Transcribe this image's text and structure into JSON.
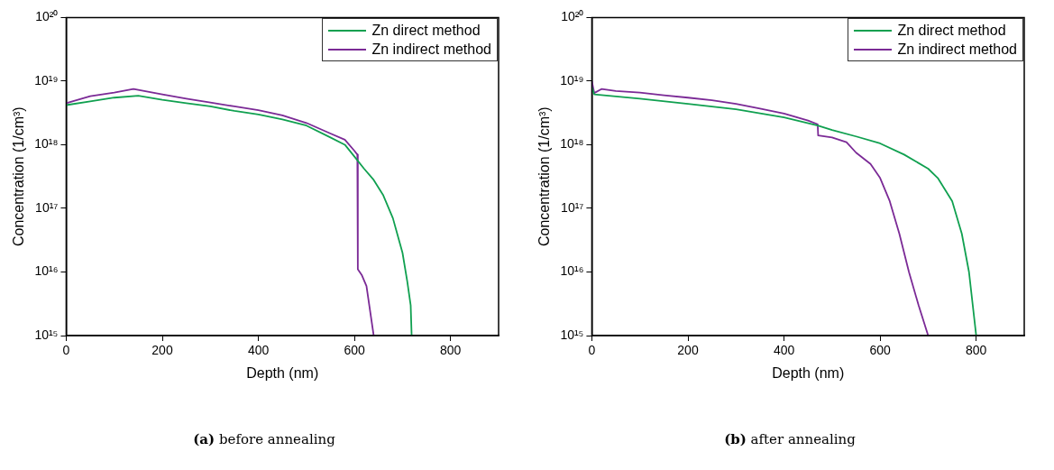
{
  "chart_data": [
    {
      "type": "line",
      "xlabel": "Depth (nm)",
      "ylabel": "Concentration (1/cm³)",
      "log": "y",
      "grid": false,
      "legend": "top right",
      "marker": "none",
      "line_style": "solid",
      "xlim": [
        0,
        900
      ],
      "xticks": [
        0,
        200,
        400,
        600,
        800
      ],
      "ylim": [
        1000000000000000.0,
        1e+20
      ],
      "yticks": [
        {
          "value": 1000000000000000.0,
          "label": "10¹⁵"
        },
        {
          "value": 1e+16,
          "label": "10¹⁶"
        },
        {
          "value": 1e+17,
          "label": "10¹⁷"
        },
        {
          "value": 1e+18,
          "label": "10¹⁸"
        },
        {
          "value": 1e+19,
          "label": "10¹⁹"
        },
        {
          "value": 1e+20,
          "label": "10²⁰"
        }
      ],
      "annotations": [
        "(a) before annealing"
      ],
      "series": [
        {
          "name": "Zn direct method",
          "color": "#10a050",
          "x": [
            0,
            50,
            100,
            150,
            200,
            250,
            300,
            350,
            400,
            450,
            500,
            550,
            580,
            600,
            620,
            640,
            660,
            680,
            700,
            710,
            717,
            719
          ],
          "values": [
            4.2e+18,
            4.8e+18,
            5.5e+18,
            5.9e+18,
            5.1e+18,
            4.5e+18,
            4e+18,
            3.4e+18,
            3e+18,
            2.5e+18,
            2e+18,
            1.3e+18,
            1e+18,
            6.5e+17,
            4.2e+17,
            2.8e+17,
            1.6e+17,
            7e+16,
            2e+16,
            7000000000000000.0,
            3000000000000000.0,
            1000000000000000.0
          ]
        },
        {
          "name": "Zn indirect method",
          "color": "#7b2a96",
          "x": [
            0,
            50,
            100,
            140,
            200,
            250,
            300,
            350,
            400,
            450,
            500,
            550,
            580,
            600,
            606,
            607,
            615,
            625,
            640
          ],
          "values": [
            4.5e+18,
            5.8e+18,
            6.6e+18,
            7.5e+18,
            6.2e+18,
            5.3e+18,
            4.6e+18,
            4e+18,
            3.5e+18,
            2.9e+18,
            2.2e+18,
            1.5e+18,
            1.2e+18,
            8e+17,
            7e+17,
            1.1e+16,
            9000000000000000.0,
            6000000000000000.0,
            1000000000000000.0
          ]
        }
      ]
    },
    {
      "type": "line",
      "xlabel": "Depth (nm)",
      "ylabel": "Concentration (1/cm³)",
      "log": "y",
      "grid": false,
      "legend": "top right",
      "marker": "none",
      "line_style": "solid",
      "xlim": [
        0,
        900
      ],
      "xticks": [
        0,
        200,
        400,
        600,
        800
      ],
      "ylim": [
        1000000000000000.0,
        1e+20
      ],
      "yticks": [
        {
          "value": 1000000000000000.0,
          "label": "10¹⁵"
        },
        {
          "value": 1e+16,
          "label": "10¹⁶"
        },
        {
          "value": 1e+17,
          "label": "10¹⁷"
        },
        {
          "value": 1e+18,
          "label": "10¹⁸"
        },
        {
          "value": 1e+19,
          "label": "10¹⁹"
        },
        {
          "value": 1e+20,
          "label": "10²⁰"
        }
      ],
      "annotations": [
        "(b) after annealing"
      ],
      "series": [
        {
          "name": "Zn direct method",
          "color": "#10a050",
          "x": [
            0,
            5,
            100,
            200,
            300,
            400,
            470,
            500,
            550,
            600,
            650,
            700,
            720,
            750,
            770,
            785,
            800
          ],
          "values": [
            8e+18,
            6.2e+18,
            5.3e+18,
            4.4e+18,
            3.6e+18,
            2.7e+18,
            2e+18,
            1.7e+18,
            1.35e+18,
            1.05e+18,
            7e+17,
            4.2e+17,
            3e+17,
            1.3e+17,
            4e+16,
            1e+16,
            1000000000000000.0
          ]
        },
        {
          "name": "Zn indirect method",
          "color": "#7b2a96",
          "x": [
            0,
            5,
            20,
            50,
            100,
            150,
            200,
            250,
            300,
            350,
            400,
            450,
            470,
            471,
            500,
            530,
            550,
            580,
            600,
            620,
            640,
            660,
            680,
            700
          ],
          "values": [
            1e+19,
            6.5e+18,
            7.5e+18,
            7e+18,
            6.6e+18,
            6e+18,
            5.5e+18,
            5e+18,
            4.4e+18,
            3.7e+18,
            3.1e+18,
            2.4e+18,
            2.1e+18,
            1.4e+18,
            1.3e+18,
            1.1e+18,
            7.5e+17,
            5e+17,
            3e+17,
            1.3e+17,
            4e+16,
            1e+16,
            3000000000000000.0,
            1000000000000000.0
          ]
        }
      ]
    }
  ]
}
